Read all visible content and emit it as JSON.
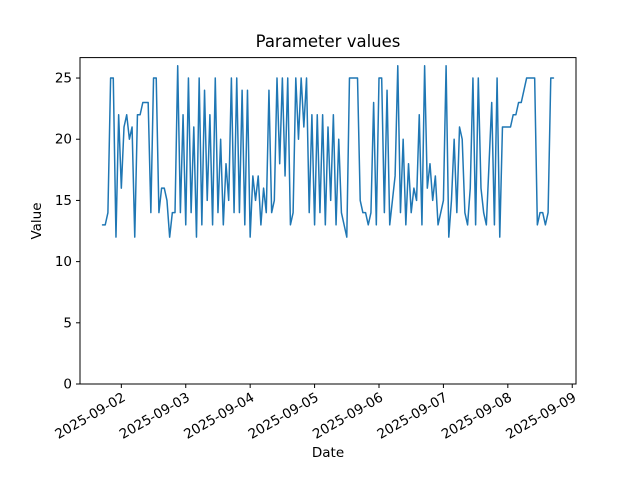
{
  "chart_data": {
    "type": "line",
    "title": "Parameter values",
    "xlabel": "Date",
    "ylabel": "Value",
    "line_color": "#1f77b4",
    "axis_color": "#000000",
    "background_color": "#ffffff",
    "grid": false,
    "legend": null,
    "x_start": "2025-09-01 17:00",
    "interval_hours": 1,
    "x_tick_labels": [
      "2025-09-02",
      "2025-09-03",
      "2025-09-04",
      "2025-09-05",
      "2025-09-06",
      "2025-09-07",
      "2025-09-08",
      "2025-09-09"
    ],
    "x_tick_hours": [
      7,
      31,
      55,
      79,
      103,
      127,
      151,
      175
    ],
    "x_tick_rotation_deg": 30,
    "xlim_hours": [
      -8.4,
      176.4
    ],
    "y_tick_values": [
      0,
      5,
      10,
      15,
      20,
      25
    ],
    "ylim": [
      0,
      26.67
    ],
    "values": [
      13,
      13,
      14,
      25,
      25,
      12,
      22,
      16,
      21,
      22,
      20,
      21,
      12,
      22,
      22,
      23,
      23,
      23,
      14,
      25,
      25,
      14,
      16,
      16,
      15,
      12,
      14,
      14,
      26,
      14,
      22,
      13,
      25,
      14,
      21,
      12,
      25,
      13,
      24,
      15,
      22,
      13,
      25,
      14,
      20,
      13,
      18,
      15,
      25,
      14,
      25,
      14,
      24,
      13,
      24,
      12,
      17,
      15,
      17,
      13,
      16,
      14,
      24,
      14,
      15,
      25,
      18,
      25,
      17,
      25,
      13,
      14,
      25,
      20,
      25,
      21,
      25,
      14,
      22,
      13,
      22,
      14,
      22,
      13,
      21,
      15,
      22,
      13,
      20,
      14,
      13,
      12,
      25,
      25,
      25,
      25,
      15,
      14,
      14,
      13,
      14,
      23,
      13,
      25,
      25,
      14,
      24,
      13,
      15,
      17,
      26,
      14,
      20,
      13,
      18,
      14,
      16,
      15,
      22,
      13,
      26,
      16,
      18,
      15,
      17,
      13,
      14,
      15,
      26,
      12,
      15,
      20,
      14,
      21,
      20,
      14,
      13,
      16,
      25,
      13,
      25,
      16,
      14,
      13,
      18,
      23,
      13,
      25,
      12,
      21,
      21,
      21,
      21,
      22,
      22,
      23,
      23,
      24,
      25,
      25,
      25,
      25,
      13,
      14,
      14,
      13,
      14,
      25,
      25
    ]
  }
}
